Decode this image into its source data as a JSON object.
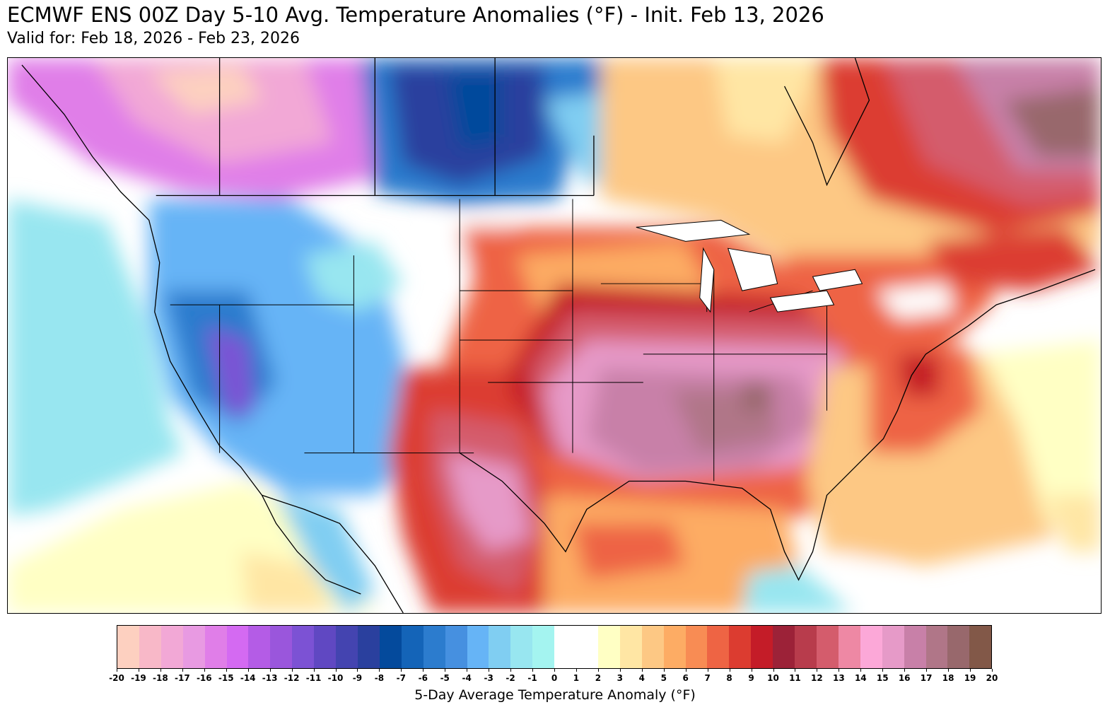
{
  "header": {
    "title": "ECMWF ENS 00Z Day 5-10 Avg. Temperature Anomalies (°F) - Init. Feb 13, 2026",
    "subtitle": "Valid for: Feb 18, 2026 - Feb 23, 2026"
  },
  "colorbar": {
    "label": "5-Day Average Temperature Anomaly (°F)",
    "ticks": [
      "-20",
      "-19",
      "-18",
      "-17",
      "-16",
      "-15",
      "-14",
      "-13",
      "-12",
      "-11",
      "-10",
      "-9",
      "-8",
      "-7",
      "-6",
      "-5",
      "-4",
      "-3",
      "-2",
      "-1",
      "0",
      "1",
      "2",
      "3",
      "4",
      "5",
      "6",
      "7",
      "8",
      "9",
      "10",
      "11",
      "12",
      "13",
      "14",
      "15",
      "16",
      "17",
      "18",
      "19",
      "20"
    ],
    "colors": [
      "#fdd0c0",
      "#f8b8c8",
      "#f2a8d6",
      "#e89ae2",
      "#e07ee8",
      "#d46af2",
      "#b45ce6",
      "#9a56dc",
      "#7c52d4",
      "#6048c2",
      "#4444b0",
      "#2a409e",
      "#044a9c",
      "#1464b8",
      "#2c7cce",
      "#4690e0",
      "#66b4f6",
      "#80cef2",
      "#98e6f0",
      "#a4f4f0",
      "#ffffff",
      "#ffffff",
      "#ffffc4",
      "#ffe6a4",
      "#fdc884",
      "#fdac64",
      "#f88c54",
      "#ee6444",
      "#dc3c30",
      "#c41c28",
      "#9c2238",
      "#b83c4c",
      "#d45c6c",
      "#ee88a4",
      "#fca8d8",
      "#e69ac8",
      "#c880a8",
      "#b07688",
      "#98686c",
      "#825848",
      "#6a4830"
    ]
  },
  "map": {
    "region": "United States",
    "labels": {}
  }
}
